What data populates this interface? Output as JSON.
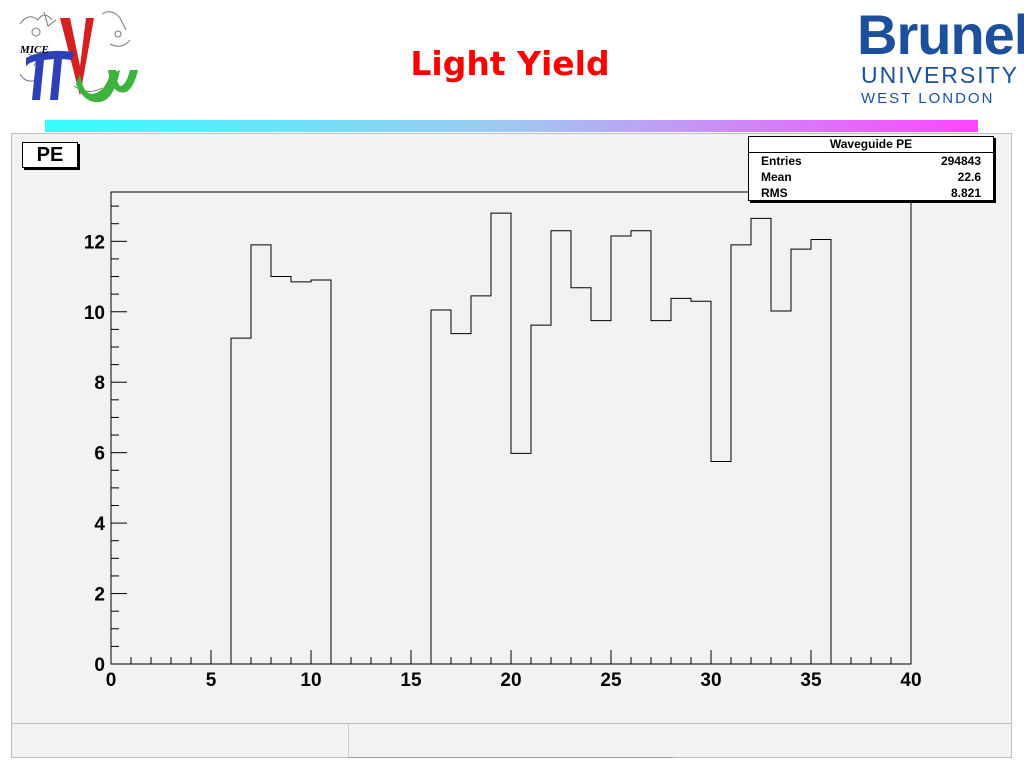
{
  "title": "Light Yield",
  "brand": {
    "name": "Brunel",
    "line2": "UNIVERSITY",
    "line3": "WEST LONDON"
  },
  "mice_logo": {
    "text": "MICE"
  },
  "pad_label": "PE",
  "stats_box": {
    "title": "Waveguide PE",
    "rows": [
      {
        "label": "Entries",
        "value": "294843"
      },
      {
        "label": "Mean",
        "value": "22.6"
      },
      {
        "label": "RMS",
        "value": "8.821"
      }
    ]
  },
  "colors": {
    "title": "#ff0000",
    "brand": "#1c4f9c",
    "bar_start": "#33ffff",
    "bar_end": "#ff44ff"
  },
  "chart_data": {
    "type": "histogram",
    "title": "",
    "xlabel": "",
    "ylabel": "",
    "xlim": [
      0,
      40
    ],
    "ylim": [
      0,
      13.4
    ],
    "xticks": [
      0,
      5,
      10,
      15,
      20,
      25,
      30,
      35,
      40
    ],
    "yticks": [
      0,
      2,
      4,
      6,
      8,
      10,
      12
    ],
    "bin_width": 1,
    "bin_edges_start": 0,
    "values": [
      0,
      0,
      0,
      0,
      0,
      0,
      9.25,
      11.9,
      11.0,
      10.85,
      10.9,
      0,
      0,
      0,
      0,
      0,
      10.05,
      9.38,
      10.45,
      12.8,
      5.98,
      9.62,
      12.3,
      10.68,
      9.75,
      12.15,
      12.3,
      9.75,
      10.38,
      10.3,
      5.75,
      11.9,
      12.65,
      10.02,
      11.78,
      12.05,
      0,
      0,
      0,
      0
    ]
  }
}
